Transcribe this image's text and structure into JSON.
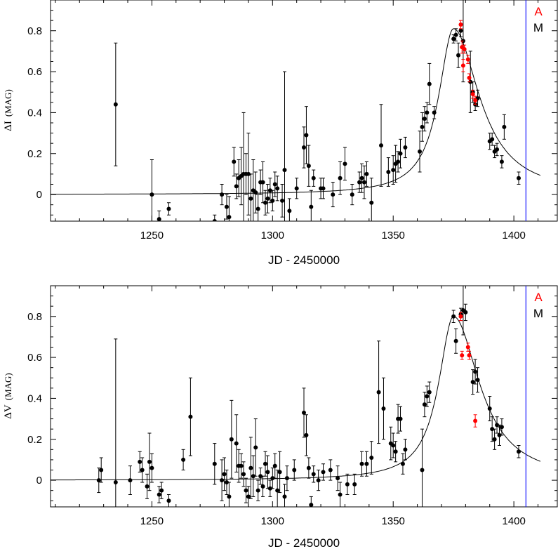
{
  "colors": {
    "data": "#000000",
    "highlight": "#ff0000",
    "marker_line": "#1a1aff",
    "axis": "#000000"
  },
  "chart_data": [
    {
      "type": "scatter",
      "title": "",
      "xlabel": "JD - 2450000",
      "ylabel": "ΔI (MAG)",
      "ylabel_delta": "Δ",
      "ylabel_var": "I",
      "ylabel_unit": "(MAG)",
      "xlim": [
        1208,
        1418
      ],
      "ylim": [
        -0.13,
        0.95
      ],
      "x_ticks": [
        1250,
        1300,
        1350,
        1400
      ],
      "y_ticks": [
        0,
        0.2,
        0.4,
        0.6,
        0.8
      ],
      "y_tick_labels": [
        "0",
        "0.2",
        "0.4",
        "0.6",
        "0.8"
      ],
      "grid": false,
      "legend_position": "top-right",
      "legend": [
        {
          "label": "A",
          "color": "#ff0000"
        },
        {
          "label": "M",
          "color": "#000000"
        }
      ],
      "vertical_line_x": 1405,
      "model_curve": {
        "name": "",
        "baseline": 0.0,
        "peak_x": 1375,
        "peak_y": 0.81,
        "x_range": [
          1208,
          1411
        ]
      },
      "series": [
        {
          "key": "M",
          "color": "#000000",
          "points": [
            [
              1235,
              0.44,
              0.3
            ],
            [
              1250,
              0.0,
              0.17
            ],
            [
              1253,
              -0.12,
              0.04
            ],
            [
              1257,
              -0.07,
              0.03
            ],
            [
              1276,
              -0.13,
              0.03
            ],
            [
              1279,
              0.0,
              0.05
            ],
            [
              1281,
              -0.06,
              0.06
            ],
            [
              1282,
              -0.11,
              0.1
            ],
            [
              1284,
              0.16,
              0.07
            ],
            [
              1285,
              0.04,
              0.06
            ],
            [
              1286,
              0.08,
              0.09
            ],
            [
              1287,
              0.09,
              0.14
            ],
            [
              1288,
              0.1,
              0.3
            ],
            [
              1289,
              0.1,
              0.1
            ],
            [
              1290,
              0.1,
              0.2
            ],
            [
              1291,
              -0.02,
              0.12
            ],
            [
              1292,
              0.02,
              0.15
            ],
            [
              1293,
              0.01,
              0.1
            ],
            [
              1294,
              -0.07,
              0.07
            ],
            [
              1295,
              0.06,
              0.06
            ],
            [
              1296,
              0.06,
              0.1
            ],
            [
              1297,
              -0.04,
              0.06
            ],
            [
              1298,
              -0.02,
              0.07
            ],
            [
              1299,
              0.02,
              0.06
            ],
            [
              1300,
              -0.03,
              0.05
            ],
            [
              1301,
              0.05,
              0.06
            ],
            [
              1302,
              0.03,
              0.06
            ],
            [
              1304,
              -0.03,
              0.08
            ],
            [
              1305,
              0.12,
              0.48
            ],
            [
              1307,
              -0.08,
              0.06
            ],
            [
              1310,
              0.03,
              0.05
            ],
            [
              1313,
              0.23,
              0.1
            ],
            [
              1314,
              0.29,
              0.14
            ],
            [
              1315,
              0.14,
              0.1
            ],
            [
              1316,
              -0.06,
              0.08
            ],
            [
              1317,
              0.08,
              0.04
            ],
            [
              1320,
              0.03,
              0.05
            ],
            [
              1321,
              0.03,
              0.05
            ],
            [
              1325,
              0.0,
              0.06
            ],
            [
              1328,
              0.08,
              0.08
            ],
            [
              1330,
              0.15,
              0.08
            ],
            [
              1333,
              0.0,
              0.05
            ],
            [
              1336,
              0.06,
              0.05
            ],
            [
              1337,
              0.08,
              0.07
            ],
            [
              1338,
              0.06,
              0.08
            ],
            [
              1339,
              0.1,
              0.06
            ],
            [
              1341,
              -0.04,
              0.12
            ],
            [
              1345,
              0.24,
              0.2
            ],
            [
              1348,
              0.11,
              0.07
            ],
            [
              1350,
              0.12,
              0.07
            ],
            [
              1351,
              0.15,
              0.09
            ],
            [
              1352,
              0.16,
              0.05
            ],
            [
              1353,
              0.2,
              0.07
            ],
            [
              1355,
              0.23,
              0.05
            ],
            [
              1361,
              0.21,
              0.1
            ],
            [
              1362,
              0.33,
              0.07
            ],
            [
              1363,
              0.37,
              0.06
            ],
            [
              1364,
              0.4,
              0.05
            ],
            [
              1365,
              0.54,
              0.1
            ],
            [
              1367,
              0.4,
              0.03
            ],
            [
              1375,
              0.76,
              0.02
            ],
            [
              1376,
              0.78,
              0.03
            ],
            [
              1377,
              0.68,
              0.06
            ],
            [
              1378,
              0.8,
              0.03
            ],
            [
              1379,
              0.75,
              0.2
            ],
            [
              1382,
              0.55,
              0.15
            ],
            [
              1383,
              0.5,
              0.05
            ],
            [
              1384,
              0.44,
              0.03
            ],
            [
              1385,
              0.47,
              0.04
            ],
            [
              1390,
              0.26,
              0.04
            ],
            [
              1391,
              0.27,
              0.03
            ],
            [
              1392,
              0.21,
              0.03
            ],
            [
              1393,
              0.22,
              0.03
            ],
            [
              1395,
              0.16,
              0.03
            ],
            [
              1396,
              0.33,
              0.06
            ],
            [
              1402,
              0.08,
              0.03
            ]
          ]
        },
        {
          "key": "A",
          "color": "#ff0000",
          "points": [
            [
              1378,
              0.83,
              0.02
            ],
            [
              1378.5,
              0.72,
              0.03
            ],
            [
              1379,
              0.63,
              0.03
            ],
            [
              1379.5,
              0.71,
              0.02
            ],
            [
              1381,
              0.66,
              0.02
            ],
            [
              1381.5,
              0.57,
              0.02
            ],
            [
              1383,
              0.49,
              0.02
            ],
            [
              1384,
              0.46,
              0.02
            ]
          ]
        }
      ]
    },
    {
      "type": "scatter",
      "title": "",
      "xlabel": "JD - 2450000",
      "ylabel": "ΔV (MAG)",
      "ylabel_delta": "Δ",
      "ylabel_var": "V",
      "ylabel_unit": "(MAG)",
      "xlim": [
        1208,
        1418
      ],
      "ylim": [
        -0.13,
        0.95
      ],
      "x_ticks": [
        1250,
        1300,
        1350,
        1400
      ],
      "y_ticks": [
        0,
        0.2,
        0.4,
        0.6,
        0.8
      ],
      "y_tick_labels": [
        "0",
        "0.2",
        "0.4",
        "0.6",
        "0.8"
      ],
      "grid": false,
      "legend_position": "top-right",
      "legend": [
        {
          "label": "A",
          "color": "#ff0000"
        },
        {
          "label": "M",
          "color": "#000000"
        }
      ],
      "vertical_line_x": 1405,
      "model_curve": {
        "name": "",
        "baseline": 0.0,
        "peak_x": 1375,
        "peak_y": 0.8,
        "x_range": [
          1208,
          1411
        ]
      },
      "series": [
        {
          "key": "M",
          "color": "#000000",
          "points": [
            [
              1228,
              0.0,
              0.06
            ],
            [
              1229,
              0.05,
              0.06
            ],
            [
              1235,
              -0.01,
              0.7
            ],
            [
              1241,
              0.0,
              0.07
            ],
            [
              1245,
              0.09,
              0.05
            ],
            [
              1246,
              0.05,
              0.06
            ],
            [
              1248,
              -0.03,
              0.06
            ],
            [
              1249,
              0.09,
              0.14
            ],
            [
              1250,
              0.06,
              0.07
            ],
            [
              1253,
              -0.07,
              0.04
            ],
            [
              1254,
              -0.05,
              0.04
            ],
            [
              1257,
              -0.1,
              0.03
            ],
            [
              1263,
              0.1,
              0.05
            ],
            [
              1266,
              0.31,
              0.19
            ],
            [
              1276,
              0.08,
              0.1
            ],
            [
              1279,
              0.0,
              0.1
            ],
            [
              1280,
              0.03,
              0.08
            ],
            [
              1281,
              -0.01,
              0.06
            ],
            [
              1282,
              -0.08,
              0.07
            ],
            [
              1283,
              0.2,
              0.19
            ],
            [
              1285,
              0.18,
              0.14
            ],
            [
              1286,
              0.07,
              0.08
            ],
            [
              1287,
              0.07,
              0.06
            ],
            [
              1288,
              0.03,
              0.06
            ],
            [
              1289,
              -0.05,
              0.06
            ],
            [
              1290,
              -0.08,
              0.05
            ],
            [
              1291,
              0.06,
              0.15
            ],
            [
              1292,
              0.02,
              0.1
            ],
            [
              1293,
              0.16,
              0.14
            ],
            [
              1294,
              -0.05,
              0.05
            ],
            [
              1295,
              0.02,
              0.04
            ],
            [
              1296,
              -0.03,
              0.05
            ],
            [
              1297,
              0.08,
              0.06
            ],
            [
              1298,
              0.04,
              0.08
            ],
            [
              1299,
              -0.04,
              0.04
            ],
            [
              1300,
              0.01,
              0.05
            ],
            [
              1301,
              0.07,
              0.06
            ],
            [
              1302,
              -0.05,
              0.1
            ],
            [
              1303,
              0.04,
              0.1
            ],
            [
              1305,
              -0.08,
              0.06
            ],
            [
              1306,
              0.01,
              0.06
            ],
            [
              1309,
              0.05,
              0.05
            ],
            [
              1313,
              0.33,
              0.12
            ],
            [
              1314,
              0.22,
              0.1
            ],
            [
              1315,
              0.06,
              0.05
            ],
            [
              1316,
              -0.12,
              0.04
            ],
            [
              1317,
              0.03,
              0.04
            ],
            [
              1319,
              0.0,
              0.05
            ],
            [
              1321,
              0.04,
              0.04
            ],
            [
              1324,
              0.05,
              0.05
            ],
            [
              1327,
              0.01,
              0.06
            ],
            [
              1328,
              -0.07,
              0.06
            ],
            [
              1331,
              -0.02,
              0.05
            ],
            [
              1334,
              -0.02,
              0.05
            ],
            [
              1337,
              0.08,
              0.06
            ],
            [
              1339,
              0.08,
              0.06
            ],
            [
              1341,
              0.11,
              0.08
            ],
            [
              1344,
              0.43,
              0.25
            ],
            [
              1346,
              0.35,
              0.15
            ],
            [
              1349,
              0.18,
              0.08
            ],
            [
              1350,
              0.17,
              0.06
            ],
            [
              1351,
              0.14,
              0.05
            ],
            [
              1352,
              0.3,
              0.07
            ],
            [
              1353,
              0.3,
              0.06
            ],
            [
              1354,
              0.08,
              0.05
            ],
            [
              1355,
              0.15,
              0.05
            ],
            [
              1362,
              0.05,
              0.2
            ],
            [
              1363,
              0.37,
              0.06
            ],
            [
              1364,
              0.41,
              0.05
            ],
            [
              1365,
              0.43,
              0.05
            ],
            [
              1375,
              0.8,
              0.03
            ],
            [
              1376,
              0.68,
              0.06
            ],
            [
              1378,
              0.81,
              0.03
            ],
            [
              1379,
              0.83,
              0.12
            ],
            [
              1380,
              0.82,
              0.04
            ],
            [
              1383,
              0.48,
              0.06
            ],
            [
              1384,
              0.53,
              0.06
            ],
            [
              1385,
              0.49,
              0.06
            ],
            [
              1390,
              0.35,
              0.06
            ],
            [
              1391,
              0.25,
              0.06
            ],
            [
              1392,
              0.2,
              0.05
            ],
            [
              1393,
              0.27,
              0.04
            ],
            [
              1394,
              0.22,
              0.05
            ],
            [
              1395,
              0.26,
              0.04
            ],
            [
              1402,
              0.14,
              0.03
            ]
          ]
        },
        {
          "key": "A",
          "color": "#ff0000",
          "points": [
            [
              1378,
              0.8,
              0.02
            ],
            [
              1378.5,
              0.61,
              0.02
            ],
            [
              1381,
              0.65,
              0.02
            ],
            [
              1381.5,
              0.61,
              0.02
            ],
            [
              1384,
              0.29,
              0.03
            ]
          ]
        }
      ]
    }
  ]
}
